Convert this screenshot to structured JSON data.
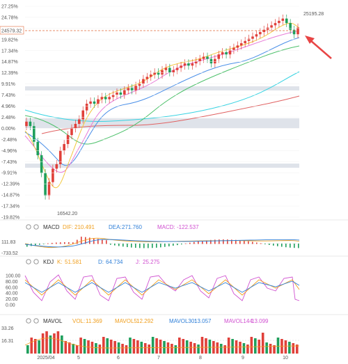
{
  "colors": {
    "up": "#e0403a",
    "down": "#1f9f5c",
    "dif": "#f0a020",
    "dea": "#2f7fd8",
    "macd": "#d050d0",
    "k": "#f0a020",
    "d": "#2f7fd8",
    "j": "#d050d0",
    "ma_yellow": "#f3c73c",
    "ma_pink": "#e77ad8",
    "ma_blue": "#4a8fe8",
    "ma_green": "#4cc06a",
    "ma_cyan": "#37d3e2",
    "ma_red": "#e06060",
    "band": "#dfe3ea",
    "current_line": "#e06a3a",
    "arrow": "#e84545"
  },
  "main": {
    "y_ticks": [
      "27.25%",
      "24.78%",
      "22.30%",
      "19.82%",
      "17.34%",
      "14.87%",
      "12.39%",
      "9.91%",
      "7.43%",
      "4.96%",
      "2.48%",
      "0.00%",
      "-2.48%",
      "-4.96%",
      "-7.43%",
      "-9.91%",
      "-12.39%",
      "-14.87%",
      "-17.34%",
      "-19.82%"
    ],
    "current_price_label": "24579.32",
    "high_label": "25195.28",
    "low_label": "16542.20"
  },
  "x_ticks": [
    "2025/04",
    "5",
    "6",
    "7",
    "8",
    "9",
    "10"
  ],
  "macd_panel": {
    "title": "MACD",
    "dif_label": "DIF:",
    "dif_value": "210.491",
    "dea_label": "DEA:",
    "dea_value": "271.760",
    "macd_label": "MACD:",
    "macd_value": "-122.537",
    "y_ticks": [
      "111.83",
      "-733.52"
    ]
  },
  "kdj_panel": {
    "title": "KDJ",
    "k_label": "K:",
    "k_value": "51.581",
    "d_label": "D:",
    "d_value": "64.734",
    "j_label": "J:",
    "j_value": "25.275",
    "y_ticks": [
      "100.00",
      "80.00",
      "60.00",
      "40.00",
      "20.00",
      "0.00"
    ]
  },
  "vol_panel": {
    "title": "MAVOL",
    "vol_label": "VOL:",
    "vol_value": "11.369",
    "ma5_label": "MAVOL5:",
    "ma5_value": "12.292",
    "ma30_label": "MAVOL30:",
    "ma30_value": "13.057",
    "ma144_label": "MAVOL144:",
    "ma144_value": "13.099",
    "y_ticks": [
      "33.26",
      "16.31"
    ]
  },
  "chart_data": {
    "type": "candlestick-with-indicators",
    "x_axis_labels": [
      "2025/04",
      "5",
      "6",
      "7",
      "8",
      "9",
      "10"
    ],
    "y_axis": "percent change",
    "ylim": [
      -19.82,
      27.25
    ],
    "high_label": "25195.28",
    "low_label": "16542.20",
    "current_price": "24579.32",
    "close_pct_series": [
      1.5,
      0.5,
      -3.0,
      -6.0,
      -10.0,
      -15.0,
      -12.0,
      -9.0,
      -8.0,
      -5.0,
      -3.5,
      -1.5,
      0.0,
      1.0,
      2.0,
      4.0,
      5.5,
      6.0,
      5.5,
      6.5,
      7.0,
      6.5,
      7.0,
      7.5,
      8.0,
      7.5,
      8.5,
      9.0,
      8.5,
      9.5,
      10.0,
      11.0,
      11.5,
      12.0,
      12.5,
      12.0,
      13.0,
      13.5,
      12.5,
      13.0,
      13.5,
      14.0,
      14.5,
      14.0,
      14.5,
      15.0,
      15.5,
      16.0,
      15.5,
      14.5,
      15.5,
      16.5,
      17.0,
      16.5,
      17.5,
      18.0,
      18.5,
      19.0,
      19.5,
      20.0,
      20.5,
      21.0,
      21.5,
      22.0,
      22.5,
      23.0,
      23.5,
      24.0,
      24.5,
      23.5,
      22.0,
      21.0,
      22.5
    ]
  }
}
